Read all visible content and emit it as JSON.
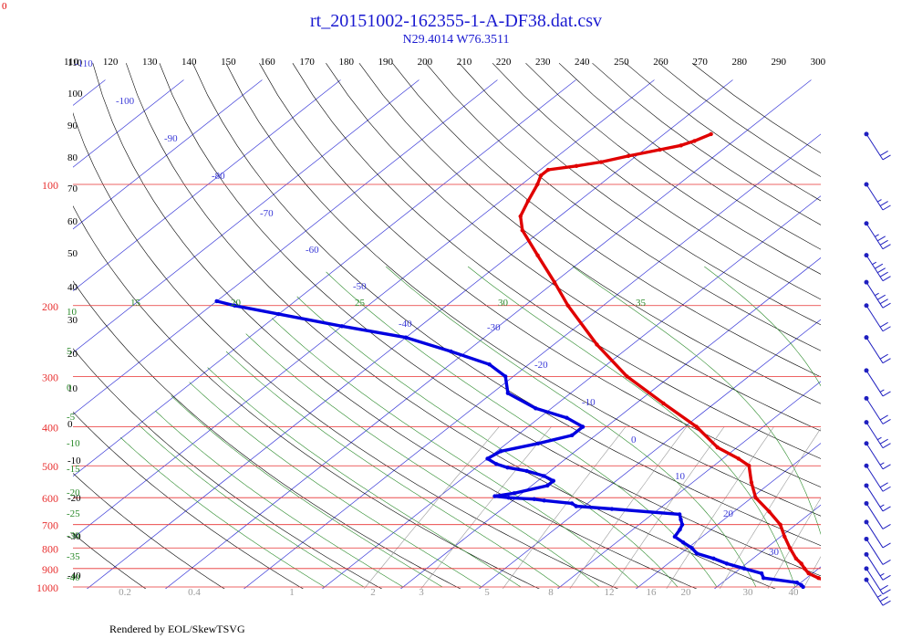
{
  "header": {
    "title": "rt_20151002-162355-1-A-DF38.dat.csv",
    "subtitle": "N29.4014 W76.3511",
    "corner_label": "0"
  },
  "footer": {
    "credit": "Rendered by EOL/SkewTSVG"
  },
  "colors": {
    "title": "#1a1ad0",
    "isobar": "#e83030",
    "isotherm": "#3b3bd8",
    "dry_adiabat": "#000000",
    "moist_adiabat": "#2a8a2a",
    "mixing_ratio": "#9a9a9a",
    "temperature": "#e00000",
    "dewpoint": "#0000e0",
    "wind_barb": "#2020c0"
  },
  "chart_data": {
    "type": "skew-t",
    "pressure_axis_labels": [
      "100",
      "200",
      "300",
      "400",
      "500",
      "600",
      "700",
      "800",
      "900",
      "1000"
    ],
    "pressure_levels": [
      100,
      200,
      300,
      400,
      500,
      600,
      700,
      800,
      900,
      1000
    ],
    "top_theta_labels": [
      "110",
      "120",
      "130",
      "140",
      "150",
      "160",
      "170",
      "180",
      "190",
      "200",
      "210",
      "220",
      "230",
      "240",
      "250",
      "260",
      "270",
      "280",
      "290",
      "300"
    ],
    "isotherm_labels": [
      {
        "t": -110,
        "text": "-110"
      },
      {
        "t": -100,
        "text": "-100"
      },
      {
        "t": -90,
        "text": "-90"
      },
      {
        "t": -80,
        "text": "-80"
      },
      {
        "t": -70,
        "text": "-70"
      },
      {
        "t": -60,
        "text": "-60"
      },
      {
        "t": -50,
        "text": "-50"
      },
      {
        "t": -40,
        "text": "-40"
      },
      {
        "t": -30,
        "text": "-30"
      },
      {
        "t": -20,
        "text": "-20"
      },
      {
        "t": -10,
        "text": "-10"
      },
      {
        "t": 0,
        "text": "0"
      },
      {
        "t": 10,
        "text": "10"
      },
      {
        "t": 20,
        "text": "20"
      },
      {
        "t": 30,
        "text": "30"
      }
    ],
    "left_black_labels": [
      "110",
      "100",
      "90",
      "80",
      "70",
      "60",
      "50",
      "40",
      "30",
      "20",
      "10",
      "0",
      "-10",
      "-20",
      "-30",
      "-40"
    ],
    "moist_top_labels": [
      "15",
      "20",
      "25",
      "30",
      "35"
    ],
    "moist_left_labels": [
      "10",
      "5",
      "0",
      "-5",
      "-10",
      "-15",
      "-20",
      "-25",
      "-30",
      "-35",
      "-40"
    ],
    "mixing_ratio_labels": [
      "0.2",
      "0.4",
      "1",
      "2",
      "3",
      "5",
      "8",
      "12",
      "16",
      "20",
      "30",
      "40"
    ],
    "temperature_profile": [
      [
        1000,
        26.5
      ],
      [
        975,
        24.0
      ],
      [
        950,
        21.5
      ],
      [
        925,
        19.5
      ],
      [
        900,
        18.2
      ],
      [
        875,
        17.0
      ],
      [
        850,
        15.5
      ],
      [
        800,
        13.0
      ],
      [
        750,
        10.5
      ],
      [
        700,
        8.0
      ],
      [
        650,
        4.5
      ],
      [
        600,
        0.5
      ],
      [
        550,
        -2.5
      ],
      [
        500,
        -5.5
      ],
      [
        480,
        -8.0
      ],
      [
        450,
        -12.5
      ],
      [
        400,
        -18.5
      ],
      [
        350,
        -26.5
      ],
      [
        300,
        -35.5
      ],
      [
        250,
        -44.5
      ],
      [
        200,
        -54.5
      ],
      [
        175,
        -60.0
      ],
      [
        150,
        -66.5
      ],
      [
        130,
        -72.5
      ],
      [
        120,
        -75.0
      ],
      [
        110,
        -76.5
      ],
      [
        100,
        -78.0
      ],
      [
        95,
        -79.0
      ],
      [
        92,
        -79.0
      ],
      [
        90,
        -76.0
      ],
      [
        88,
        -73.5
      ],
      [
        85,
        -71.0
      ],
      [
        82,
        -68.0
      ],
      [
        80,
        -66.0
      ],
      [
        78,
        -65.0
      ],
      [
        75,
        -64.0
      ]
    ],
    "dewpoint_profile": [
      [
        1000,
        21.0
      ],
      [
        990,
        20.5
      ],
      [
        975,
        19.5
      ],
      [
        950,
        14.5
      ],
      [
        925,
        13.5
      ],
      [
        900,
        10.5
      ],
      [
        875,
        7.5
      ],
      [
        850,
        5.0
      ],
      [
        825,
        2.0
      ],
      [
        800,
        0.5
      ],
      [
        775,
        -1.5
      ],
      [
        750,
        -3.5
      ],
      [
        720,
        -4.0
      ],
      [
        700,
        -4.5
      ],
      [
        680,
        -5.5
      ],
      [
        660,
        -6.5
      ],
      [
        640,
        -16.0
      ],
      [
        630,
        -21.0
      ],
      [
        620,
        -22.0
      ],
      [
        610,
        -26.0
      ],
      [
        605,
        -27.5
      ],
      [
        600,
        -31.0
      ],
      [
        595,
        -33.0
      ],
      [
        585,
        -31.0
      ],
      [
        560,
        -28.0
      ],
      [
        545,
        -28.0
      ],
      [
        530,
        -30.0
      ],
      [
        515,
        -33.0
      ],
      [
        505,
        -36.0
      ],
      [
        495,
        -38.0
      ],
      [
        480,
        -40.0
      ],
      [
        460,
        -39.5
      ],
      [
        440,
        -36.0
      ],
      [
        420,
        -33.0
      ],
      [
        400,
        -33.0
      ],
      [
        380,
        -36.5
      ],
      [
        360,
        -42.0
      ],
      [
        330,
        -48.0
      ],
      [
        300,
        -51.0
      ],
      [
        280,
        -55.0
      ],
      [
        260,
        -62.0
      ],
      [
        240,
        -70.0
      ],
      [
        225,
        -80.0
      ],
      [
        210,
        -90.0
      ],
      [
        200,
        -97.0
      ],
      [
        195,
        -100.0
      ]
    ],
    "wind_barb_levels": [
      75,
      100,
      125,
      150,
      175,
      200,
      240,
      290,
      340,
      390,
      440,
      500,
      560,
      620,
      690,
      760,
      830,
      900,
      960
    ],
    "wind_barb_speeds_kt": [
      20,
      25,
      35,
      45,
      35,
      20,
      20,
      15,
      20,
      25,
      15,
      20,
      15,
      10,
      10,
      10,
      15,
      20,
      25
    ]
  }
}
